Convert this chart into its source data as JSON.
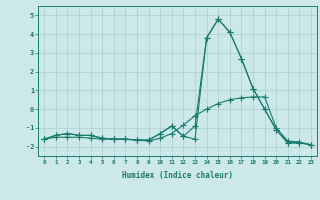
{
  "xlabel": "Humidex (Indice chaleur)",
  "x": [
    0,
    1,
    2,
    3,
    4,
    5,
    6,
    7,
    8,
    9,
    10,
    11,
    12,
    13,
    14,
    15,
    16,
    17,
    18,
    19,
    20,
    21,
    22,
    23
  ],
  "line1": [
    -1.6,
    -1.4,
    -1.3,
    -1.4,
    -1.4,
    -1.55,
    -1.6,
    -1.6,
    -1.65,
    -1.65,
    -1.3,
    -0.9,
    -1.45,
    -1.6,
    3.8,
    4.8,
    4.1,
    2.7,
    1.1,
    0.0,
    -1.1,
    -1.8,
    -1.8,
    -1.9
  ],
  "line2": [
    -1.6,
    -1.4,
    -1.3,
    -1.4,
    -1.4,
    -1.55,
    -1.6,
    -1.6,
    -1.65,
    -1.65,
    -1.3,
    -0.9,
    -1.45,
    -0.9,
    3.8,
    4.8,
    4.1,
    2.7,
    1.1,
    0.0,
    -1.1,
    -1.8,
    -1.8,
    -1.9
  ],
  "line3": [
    -1.6,
    -1.5,
    -1.5,
    -1.5,
    -1.55,
    -1.6,
    -1.6,
    -1.6,
    -1.65,
    -1.7,
    -1.55,
    -1.3,
    -0.85,
    -0.35,
    0.0,
    0.3,
    0.5,
    0.6,
    0.65,
    0.65,
    -1.0,
    -1.7,
    -1.75,
    -1.9
  ],
  "ylim": [
    -2.5,
    5.5
  ],
  "xlim": [
    -0.5,
    23.5
  ],
  "yticks": [
    -2,
    -1,
    0,
    1,
    2,
    3,
    4,
    5
  ],
  "xticks": [
    0,
    1,
    2,
    3,
    4,
    5,
    6,
    7,
    8,
    9,
    10,
    11,
    12,
    13,
    14,
    15,
    16,
    17,
    18,
    19,
    20,
    21,
    22,
    23
  ],
  "line_color": "#1a7a6e",
  "bg_color": "#cce8e8",
  "grid_color": "#aacece",
  "marker": "+",
  "markersize": 4,
  "linewidth": 0.8
}
